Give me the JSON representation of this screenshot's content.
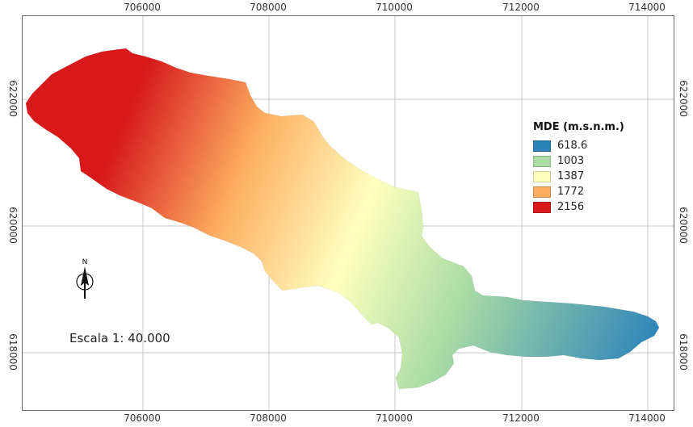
{
  "map": {
    "x_ticks": [
      "706000",
      "708000",
      "710000",
      "712000",
      "714000"
    ],
    "y_ticks": [
      "622000",
      "620000",
      "618000"
    ],
    "scale_text": "Escala 1: 40.000",
    "north_label": "N"
  },
  "legend": {
    "title": "MDE (m.s.n.m.)",
    "items": [
      {
        "label": "618.6",
        "color": "#2b83ba"
      },
      {
        "label": "1003",
        "color": "#abdda4"
      },
      {
        "label": "1387",
        "color": "#ffffbf"
      },
      {
        "label": "1772",
        "color": "#fdae61"
      },
      {
        "label": "2156",
        "color": "#d7191c"
      }
    ]
  },
  "colors": {
    "grid": "#c8c8c8",
    "frame": "#666666"
  }
}
